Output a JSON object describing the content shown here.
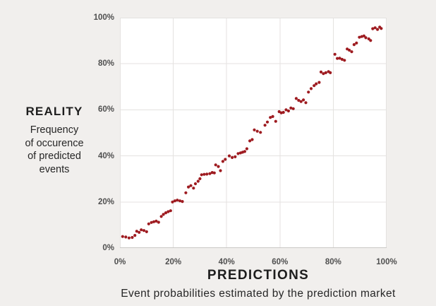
{
  "page": {
    "background_color": "#f1efed"
  },
  "y_axis": {
    "title": "REALITY",
    "subtitle_lines": [
      "Frequency",
      "of occurence",
      "of predicted",
      "events"
    ]
  },
  "x_axis": {
    "title": "PREDICTIONS",
    "subtitle": "Event probabilities estimated by the prediction market"
  },
  "chart_data": {
    "type": "scatter",
    "title": "",
    "xlabel": "PREDICTIONS — Event probabilities estimated by the prediction market",
    "ylabel": "REALITY — Frequency of occurence of predicted events",
    "xlim": [
      0,
      100
    ],
    "ylim": [
      0,
      100
    ],
    "grid": true,
    "legend": false,
    "x_tick_values": [
      0,
      20,
      40,
      60,
      80,
      100
    ],
    "x_tick_labels": [
      "0%",
      "20%",
      "40%",
      "60%",
      "80%",
      "100%"
    ],
    "y_tick_values": [
      0,
      20,
      40,
      60,
      80,
      100
    ],
    "y_tick_labels": [
      "0%",
      "20%",
      "40%",
      "60%",
      "80%",
      "100%"
    ],
    "point_color": "#9e1b20",
    "grid_color": "#e4e2e0",
    "axis_line_color": "#c9c7c5",
    "points": [
      [
        1.0,
        5.0
      ],
      [
        2.2,
        4.8
      ],
      [
        3.4,
        4.4
      ],
      [
        4.6,
        4.6
      ],
      [
        5.6,
        5.5
      ],
      [
        6.3,
        7.3
      ],
      [
        7.2,
        6.8
      ],
      [
        8.0,
        7.9
      ],
      [
        9.0,
        7.6
      ],
      [
        10.0,
        7.1
      ],
      [
        10.8,
        10.5
      ],
      [
        11.8,
        11.1
      ],
      [
        12.7,
        11.4
      ],
      [
        13.6,
        11.7
      ],
      [
        14.5,
        11.2
      ],
      [
        15.5,
        13.7
      ],
      [
        16.3,
        14.6
      ],
      [
        17.2,
        15.3
      ],
      [
        18.1,
        15.8
      ],
      [
        19.0,
        16.2
      ],
      [
        19.7,
        20.0
      ],
      [
        20.6,
        20.5
      ],
      [
        21.5,
        20.8
      ],
      [
        22.5,
        20.5
      ],
      [
        23.4,
        20.2
      ],
      [
        24.7,
        24.0
      ],
      [
        25.7,
        26.5
      ],
      [
        26.6,
        27.1
      ],
      [
        27.6,
        26.0
      ],
      [
        28.3,
        27.9
      ],
      [
        29.3,
        29.0
      ],
      [
        30.0,
        30.1
      ],
      [
        30.6,
        31.8
      ],
      [
        31.6,
        32.0
      ],
      [
        32.6,
        32.1
      ],
      [
        33.7,
        32.3
      ],
      [
        34.6,
        32.8
      ],
      [
        35.4,
        32.6
      ],
      [
        35.9,
        36.1
      ],
      [
        36.9,
        35.4
      ],
      [
        37.7,
        33.6
      ],
      [
        38.6,
        37.6
      ],
      [
        39.5,
        38.5
      ],
      [
        41.0,
        40.0
      ],
      [
        42.1,
        39.3
      ],
      [
        43.2,
        39.6
      ],
      [
        44.3,
        41.0
      ],
      [
        45.2,
        41.3
      ],
      [
        46.0,
        41.6
      ],
      [
        46.8,
        41.9
      ],
      [
        47.6,
        43.1
      ],
      [
        48.7,
        46.5
      ],
      [
        49.6,
        47.1
      ],
      [
        50.4,
        51.3
      ],
      [
        51.5,
        50.7
      ],
      [
        52.7,
        50.2
      ],
      [
        54.4,
        53.3
      ],
      [
        55.3,
        54.7
      ],
      [
        56.4,
        56.7
      ],
      [
        57.3,
        57.1
      ],
      [
        58.4,
        55.0
      ],
      [
        59.7,
        59.2
      ],
      [
        60.5,
        58.7
      ],
      [
        61.3,
        58.9
      ],
      [
        62.3,
        60.0
      ],
      [
        63.2,
        59.5
      ],
      [
        64.1,
        60.8
      ],
      [
        65.0,
        60.5
      ],
      [
        66.1,
        64.9
      ],
      [
        67.0,
        64.1
      ],
      [
        67.9,
        63.6
      ],
      [
        68.8,
        64.3
      ],
      [
        69.7,
        63.1
      ],
      [
        70.7,
        67.7
      ],
      [
        71.7,
        69.2
      ],
      [
        72.8,
        70.5
      ],
      [
        73.6,
        71.3
      ],
      [
        74.7,
        71.9
      ],
      [
        75.4,
        76.4
      ],
      [
        76.3,
        75.7
      ],
      [
        77.2,
        76.1
      ],
      [
        78.2,
        76.6
      ],
      [
        78.9,
        76.1
      ],
      [
        80.6,
        84.1
      ],
      [
        81.5,
        82.3
      ],
      [
        82.4,
        82.4
      ],
      [
        83.3,
        81.9
      ],
      [
        84.2,
        81.5
      ],
      [
        85.2,
        86.4
      ],
      [
        86.0,
        85.9
      ],
      [
        86.9,
        85.2
      ],
      [
        87.8,
        88.3
      ],
      [
        88.7,
        89.0
      ],
      [
        89.8,
        91.5
      ],
      [
        90.7,
        91.8
      ],
      [
        91.5,
        92.1
      ],
      [
        92.2,
        91.3
      ],
      [
        93.3,
        90.8
      ],
      [
        94.0,
        90.1
      ],
      [
        94.8,
        95.2
      ],
      [
        95.7,
        95.6
      ],
      [
        96.6,
        94.9
      ],
      [
        97.4,
        95.9
      ],
      [
        98.0,
        95.3
      ]
    ]
  }
}
